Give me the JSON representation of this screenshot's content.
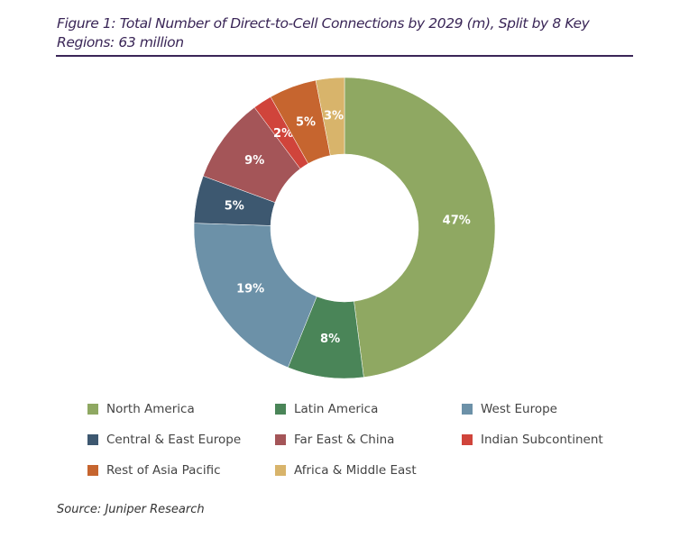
{
  "chart_data": {
    "type": "pie",
    "donut": true,
    "title": "Figure 1: Total Number of Direct-to-Cell Connections by 2029 (m), Split by 8 Key Regions: 63 million",
    "categories": [
      "North America",
      "Latin America",
      "West Europe",
      "Central & East Europe",
      "Far East & China",
      "Indian Subcontinent",
      "Rest of Asia Pacific",
      "Africa & Middle East"
    ],
    "values": [
      47,
      8,
      19,
      5,
      9,
      2,
      5,
      3
    ],
    "data_labels": [
      "47%",
      "8%",
      "19%",
      "5%",
      "9%",
      "2%",
      "5%",
      "3%"
    ],
    "colors": [
      "#8fa862",
      "#4a8558",
      "#6c91a8",
      "#3d5870",
      "#a45558",
      "#d0443b",
      "#c6652f",
      "#d8b46b"
    ],
    "legend_placement": "bottom"
  },
  "source": "Source: Juniper Research"
}
